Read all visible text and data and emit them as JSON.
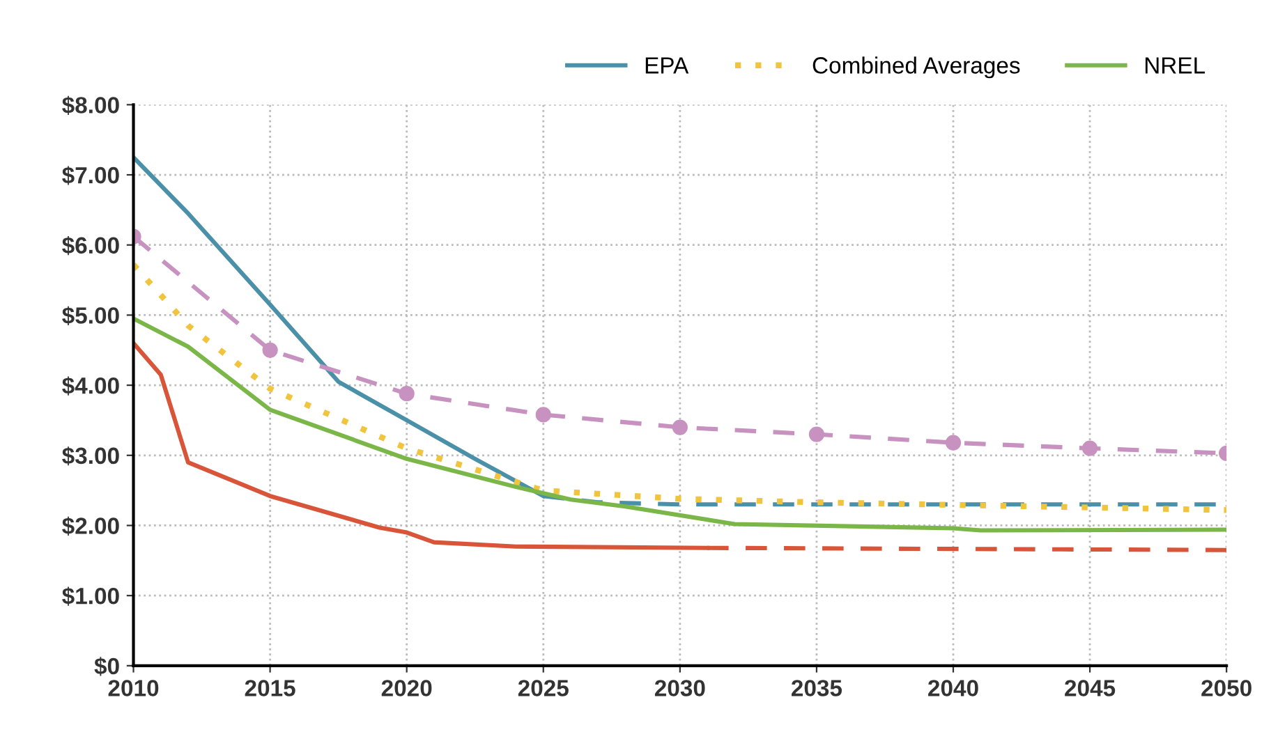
{
  "chart_data": {
    "type": "line",
    "xlim": [
      2010,
      2050
    ],
    "xticks": [
      2010,
      2015,
      2020,
      2025,
      2030,
      2035,
      2040,
      2045,
      2050
    ],
    "ylim": [
      0,
      8
    ],
    "yticks": [
      {
        "value": 0,
        "label": "$0"
      },
      {
        "value": 1,
        "label": "$1.00"
      },
      {
        "value": 2,
        "label": "$2.00"
      },
      {
        "value": 3,
        "label": "$3.00"
      },
      {
        "value": 4,
        "label": "$4.00"
      },
      {
        "value": 5,
        "label": "$5.00"
      },
      {
        "value": 6,
        "label": "$6.00"
      },
      {
        "value": 7,
        "label": "$7.00"
      },
      {
        "value": 8,
        "label": "$8.00"
      }
    ],
    "grid": true,
    "legend": "top",
    "series": [
      {
        "color": "#d9553a",
        "line_style": "solid",
        "marker": "none",
        "x": [
          2010,
          2011,
          2012,
          2015,
          2019,
          2020,
          2021,
          2024,
          2031
        ],
        "values": [
          4.6,
          4.15,
          2.9,
          2.42,
          1.97,
          1.9,
          1.76,
          1.7,
          1.68
        ]
      },
      {
        "color": "#d9553a",
        "line_style": "dashed",
        "marker": "none",
        "x": [
          2031,
          2050
        ],
        "values": [
          1.68,
          1.65
        ]
      },
      {
        "name": "EPA",
        "color": "#4a90a8",
        "line_style": "solid",
        "marker": "none",
        "x": [
          2010,
          2012,
          2015,
          2017.5,
          2020,
          2022.5,
          2025
        ],
        "values": [
          7.25,
          6.45,
          5.15,
          4.05,
          3.5,
          2.95,
          2.42
        ]
      },
      {
        "color": "#4a90a8",
        "line_style": "dashed",
        "marker": "none",
        "x": [
          2025,
          2027,
          2030,
          2050
        ],
        "values": [
          2.42,
          2.33,
          2.3,
          2.3
        ]
      },
      {
        "name": "Combined Averages",
        "color": "#f0c43c",
        "line_style": "dotted",
        "marker": "none",
        "x": [
          2010,
          2012,
          2015,
          2020,
          2024,
          2025,
          2030,
          2035,
          2050
        ],
        "values": [
          5.72,
          4.85,
          3.95,
          3.1,
          2.62,
          2.5,
          2.38,
          2.33,
          2.22
        ]
      },
      {
        "name": "NREL",
        "color": "#7ab648",
        "line_style": "solid",
        "marker": "none",
        "x": [
          2010,
          2012,
          2015,
          2020,
          2024,
          2026,
          2028,
          2032,
          2040,
          2041,
          2050
        ],
        "values": [
          4.95,
          4.55,
          3.65,
          2.95,
          2.55,
          2.37,
          2.27,
          2.02,
          1.96,
          1.93,
          1.94
        ]
      },
      {
        "color": "#c792c0",
        "line_style": "dashed",
        "marker": "circle",
        "x": [
          2010,
          2015,
          2020,
          2025,
          2030,
          2035,
          2040,
          2045,
          2050
        ],
        "values": [
          6.12,
          4.5,
          3.88,
          3.58,
          3.4,
          3.3,
          3.18,
          3.1,
          3.03
        ]
      }
    ]
  }
}
